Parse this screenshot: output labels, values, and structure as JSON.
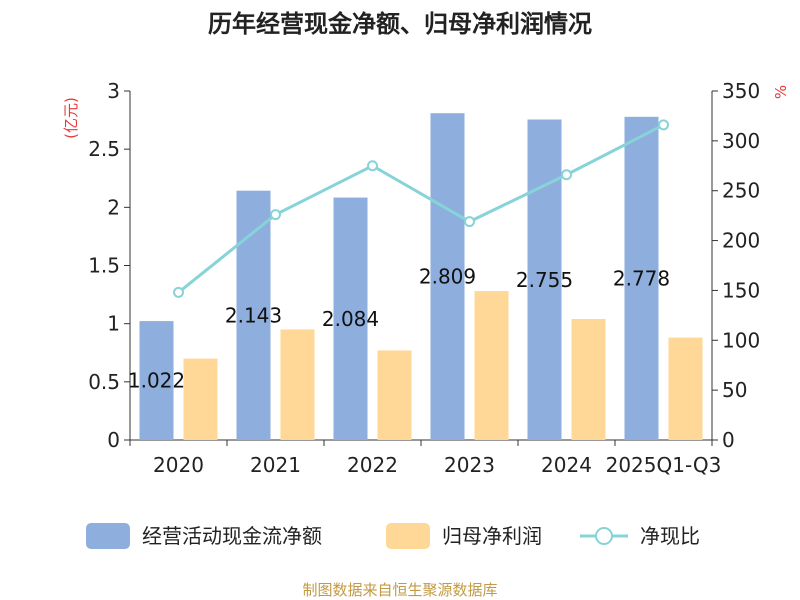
{
  "colors": {
    "cashflow": "#8eaedd",
    "netprofit": "#ffd796",
    "ratio": "#86d3d8",
    "unit": "#e8383d",
    "source": "#c39a43"
  },
  "chart_data": {
    "type": "bar",
    "title": "历年经营现金净额、归母净利润情况",
    "categories": [
      "2020",
      "2021",
      "2022",
      "2023",
      "2024",
      "2025Q1-Q3"
    ],
    "left_axis": {
      "unit": "(亿元)",
      "min": 0,
      "max": 3,
      "ticks": [
        "0",
        "0.5",
        "1",
        "1.5",
        "2",
        "2.5",
        "3"
      ]
    },
    "right_axis": {
      "unit": "%",
      "min": 0,
      "max": 350,
      "ticks": [
        "0",
        "50",
        "100",
        "150",
        "200",
        "250",
        "300",
        "350"
      ]
    },
    "series": [
      {
        "name": "经营活动现金流净额",
        "type": "bar",
        "axis": "left",
        "values": [
          1.022,
          2.143,
          2.084,
          2.809,
          2.755,
          2.778
        ],
        "labels": [
          "1.022",
          "2.143",
          "2.084",
          "2.809",
          "2.755",
          "2.778"
        ]
      },
      {
        "name": "归母净利润",
        "type": "bar",
        "axis": "left",
        "values": [
          0.7,
          0.95,
          0.77,
          1.28,
          1.04,
          0.88
        ]
      },
      {
        "name": "净现比",
        "type": "line",
        "axis": "right",
        "values": [
          148,
          226,
          275,
          219,
          266,
          316
        ]
      }
    ],
    "grid": false,
    "legend": "bottom"
  },
  "source": "制图数据来自恒生聚源数据库"
}
